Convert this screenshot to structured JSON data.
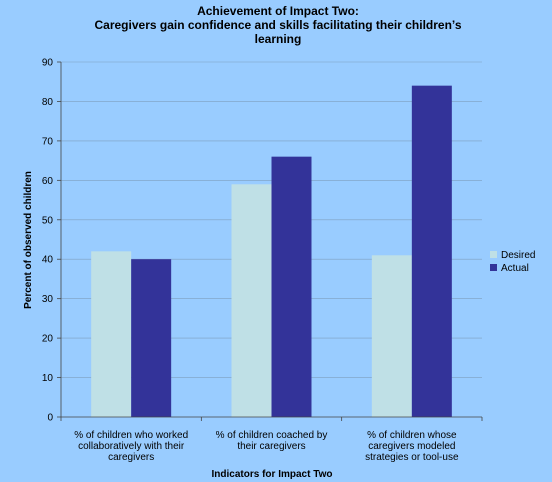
{
  "chart_data": {
    "type": "bar",
    "title_lines": [
      "Achievement of Impact Two:",
      "Caregivers gain confidence and skills facilitating their children’s",
      "learning"
    ],
    "categories": [
      [
        "% of children who worked",
        "collaboratively with their",
        "caregivers"
      ],
      [
        "% of children coached by",
        "their caregivers"
      ],
      [
        "% of children whose",
        "caregivers modeled",
        "strategies or tool-use"
      ]
    ],
    "series": [
      {
        "name": "Desired",
        "color": "#bfe0e6",
        "values": [
          42,
          59,
          41
        ]
      },
      {
        "name": "Actual",
        "color": "#333399",
        "values": [
          40,
          66,
          84
        ]
      }
    ],
    "xlabel": "Indicators for Impact Two",
    "ylabel": "Percent of observed children",
    "ylim": [
      0,
      90
    ],
    "yticks": [
      0,
      10,
      20,
      30,
      40,
      50,
      60,
      70,
      80,
      90
    ],
    "grid": true,
    "legend_position": "right"
  }
}
